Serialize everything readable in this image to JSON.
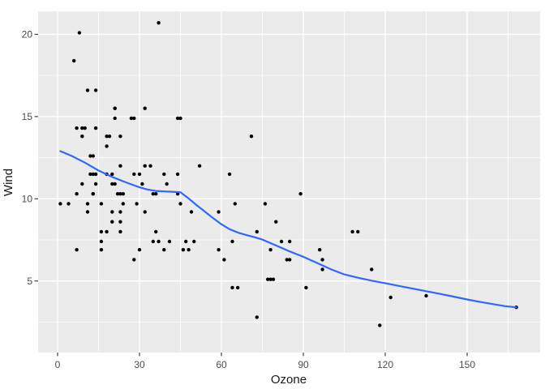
{
  "chart_data": {
    "type": "scatter",
    "title": "",
    "xlabel": "Ozone",
    "ylabel": "Wind",
    "x_ticks": [
      0,
      30,
      60,
      90,
      120,
      150
    ],
    "x_minor_ticks": [
      15,
      45,
      75,
      105,
      135,
      165
    ],
    "y_ticks": [
      5,
      10,
      15,
      20
    ],
    "y_minor_ticks": [
      2.5,
      7.5,
      12.5,
      17.5
    ],
    "xlim": [
      -7.13,
      176.73
    ],
    "ylim": [
      0.65,
      21.4
    ],
    "grid": true,
    "legend": "none",
    "points": [
      [
        41,
        7.4
      ],
      [
        36,
        8
      ],
      [
        12,
        12.6
      ],
      [
        18,
        11.5
      ],
      [
        28,
        14.9
      ],
      [
        23,
        8.6
      ],
      [
        19,
        13.8
      ],
      [
        8,
        20.1
      ],
      [
        7,
        6.9
      ],
      [
        16,
        9.7
      ],
      [
        11,
        9.2
      ],
      [
        14,
        10.9
      ],
      [
        18,
        13.2
      ],
      [
        14,
        11.5
      ],
      [
        34,
        12
      ],
      [
        6,
        18.4
      ],
      [
        30,
        11.5
      ],
      [
        11,
        9.7
      ],
      [
        1,
        9.7
      ],
      [
        11,
        16.6
      ],
      [
        4,
        9.7
      ],
      [
        32,
        12
      ],
      [
        23,
        12
      ],
      [
        45,
        14.9
      ],
      [
        115,
        5.7
      ],
      [
        37,
        7.4
      ],
      [
        29,
        9.7
      ],
      [
        71,
        13.8
      ],
      [
        39,
        11.5
      ],
      [
        23,
        8
      ],
      [
        21,
        14.9
      ],
      [
        37,
        20.7
      ],
      [
        20,
        9.2
      ],
      [
        12,
        11.5
      ],
      [
        13,
        10.3
      ],
      [
        135,
        4.1
      ],
      [
        49,
        9.2
      ],
      [
        32,
        9.2
      ],
      [
        64,
        4.6
      ],
      [
        40,
        10.9
      ],
      [
        77,
        5.1
      ],
      [
        97,
        6.3
      ],
      [
        97,
        5.7
      ],
      [
        85,
        7.4
      ],
      [
        10,
        14.3
      ],
      [
        27,
        14.9
      ],
      [
        7,
        14.3
      ],
      [
        48,
        6.9
      ],
      [
        35,
        10.3
      ],
      [
        61,
        6.3
      ],
      [
        79,
        5.1
      ],
      [
        63,
        11.5
      ],
      [
        16,
        6.9
      ],
      [
        80,
        8.6
      ],
      [
        108,
        8
      ],
      [
        20,
        8.6
      ],
      [
        52,
        12
      ],
      [
        82,
        7.4
      ],
      [
        50,
        7.4
      ],
      [
        64,
        7.4
      ],
      [
        59,
        9.2
      ],
      [
        39,
        6.9
      ],
      [
        9,
        13.8
      ],
      [
        16,
        7.4
      ],
      [
        78,
        6.9
      ],
      [
        35,
        7.4
      ],
      [
        66,
        4.6
      ],
      [
        122,
        4
      ],
      [
        89,
        10.3
      ],
      [
        110,
        8
      ],
      [
        44,
        11.5
      ],
      [
        28,
        11.5
      ],
      [
        65,
        9.7
      ],
      [
        22,
        10.3
      ],
      [
        59,
        6.9
      ],
      [
        23,
        13.8
      ],
      [
        31,
        10.9
      ],
      [
        44,
        10.3
      ],
      [
        21,
        15.5
      ],
      [
        9,
        14.3
      ],
      [
        45,
        9.7
      ],
      [
        168,
        3.4
      ],
      [
        73,
        8
      ],
      [
        76,
        9.7
      ],
      [
        118,
        2.3
      ],
      [
        84,
        6.3
      ],
      [
        85,
        6.3
      ],
      [
        96,
        6.9
      ],
      [
        78,
        5.1
      ],
      [
        73,
        2.8
      ],
      [
        91,
        4.6
      ],
      [
        47,
        7.4
      ],
      [
        32,
        15.5
      ],
      [
        20,
        10.9
      ],
      [
        23,
        10.3
      ],
      [
        21,
        10.9
      ],
      [
        24,
        9.7
      ],
      [
        44,
        14.9
      ],
      [
        21,
        15.5
      ],
      [
        28,
        6.3
      ],
      [
        9,
        10.9
      ],
      [
        13,
        11.5
      ],
      [
        46,
        6.9
      ],
      [
        18,
        13.8
      ],
      [
        13,
        10.3
      ],
      [
        24,
        10.3
      ],
      [
        16,
        8
      ],
      [
        13,
        12.6
      ],
      [
        23,
        9.2
      ],
      [
        36,
        10.3
      ],
      [
        7,
        10.3
      ],
      [
        14,
        16.6
      ],
      [
        30,
        6.9
      ],
      [
        14,
        14.3
      ],
      [
        18,
        8
      ],
      [
        20,
        11.5
      ]
    ],
    "smooth_line": {
      "method": "loess",
      "points": [
        [
          1,
          12.9
        ],
        [
          5,
          12.62
        ],
        [
          10,
          12.2
        ],
        [
          15,
          11.72
        ],
        [
          20,
          11.33
        ],
        [
          25,
          11.0
        ],
        [
          30,
          10.7
        ],
        [
          33,
          10.56
        ],
        [
          36,
          10.48
        ],
        [
          39,
          10.45
        ],
        [
          42,
          10.43
        ],
        [
          45,
          10.4
        ],
        [
          48,
          10.02
        ],
        [
          51,
          9.6
        ],
        [
          54,
          9.21
        ],
        [
          57,
          8.82
        ],
        [
          60,
          8.45
        ],
        [
          63,
          8.15
        ],
        [
          66,
          7.95
        ],
        [
          69,
          7.8
        ],
        [
          72,
          7.67
        ],
        [
          75,
          7.52
        ],
        [
          80,
          7.16
        ],
        [
          85,
          6.8
        ],
        [
          90,
          6.47
        ],
        [
          95,
          6.1
        ],
        [
          100,
          5.72
        ],
        [
          105,
          5.4
        ],
        [
          110,
          5.2
        ],
        [
          115,
          5.02
        ],
        [
          120,
          4.87
        ],
        [
          125,
          4.7
        ],
        [
          130,
          4.54
        ],
        [
          135,
          4.38
        ],
        [
          140,
          4.22
        ],
        [
          145,
          4.05
        ],
        [
          150,
          3.88
        ],
        [
          155,
          3.72
        ],
        [
          160,
          3.58
        ],
        [
          164,
          3.47
        ],
        [
          168,
          3.4
        ]
      ]
    },
    "colors": {
      "plot_bg": "#FFFFFF",
      "panel_bg": "#EBEBEB",
      "grid": "#FFFFFF",
      "point": "#000000",
      "smooth": "#3366FF",
      "tick_mark": "#333333",
      "tick_label": "#4D4D4D",
      "axis_title": "#1A1A1A"
    }
  }
}
